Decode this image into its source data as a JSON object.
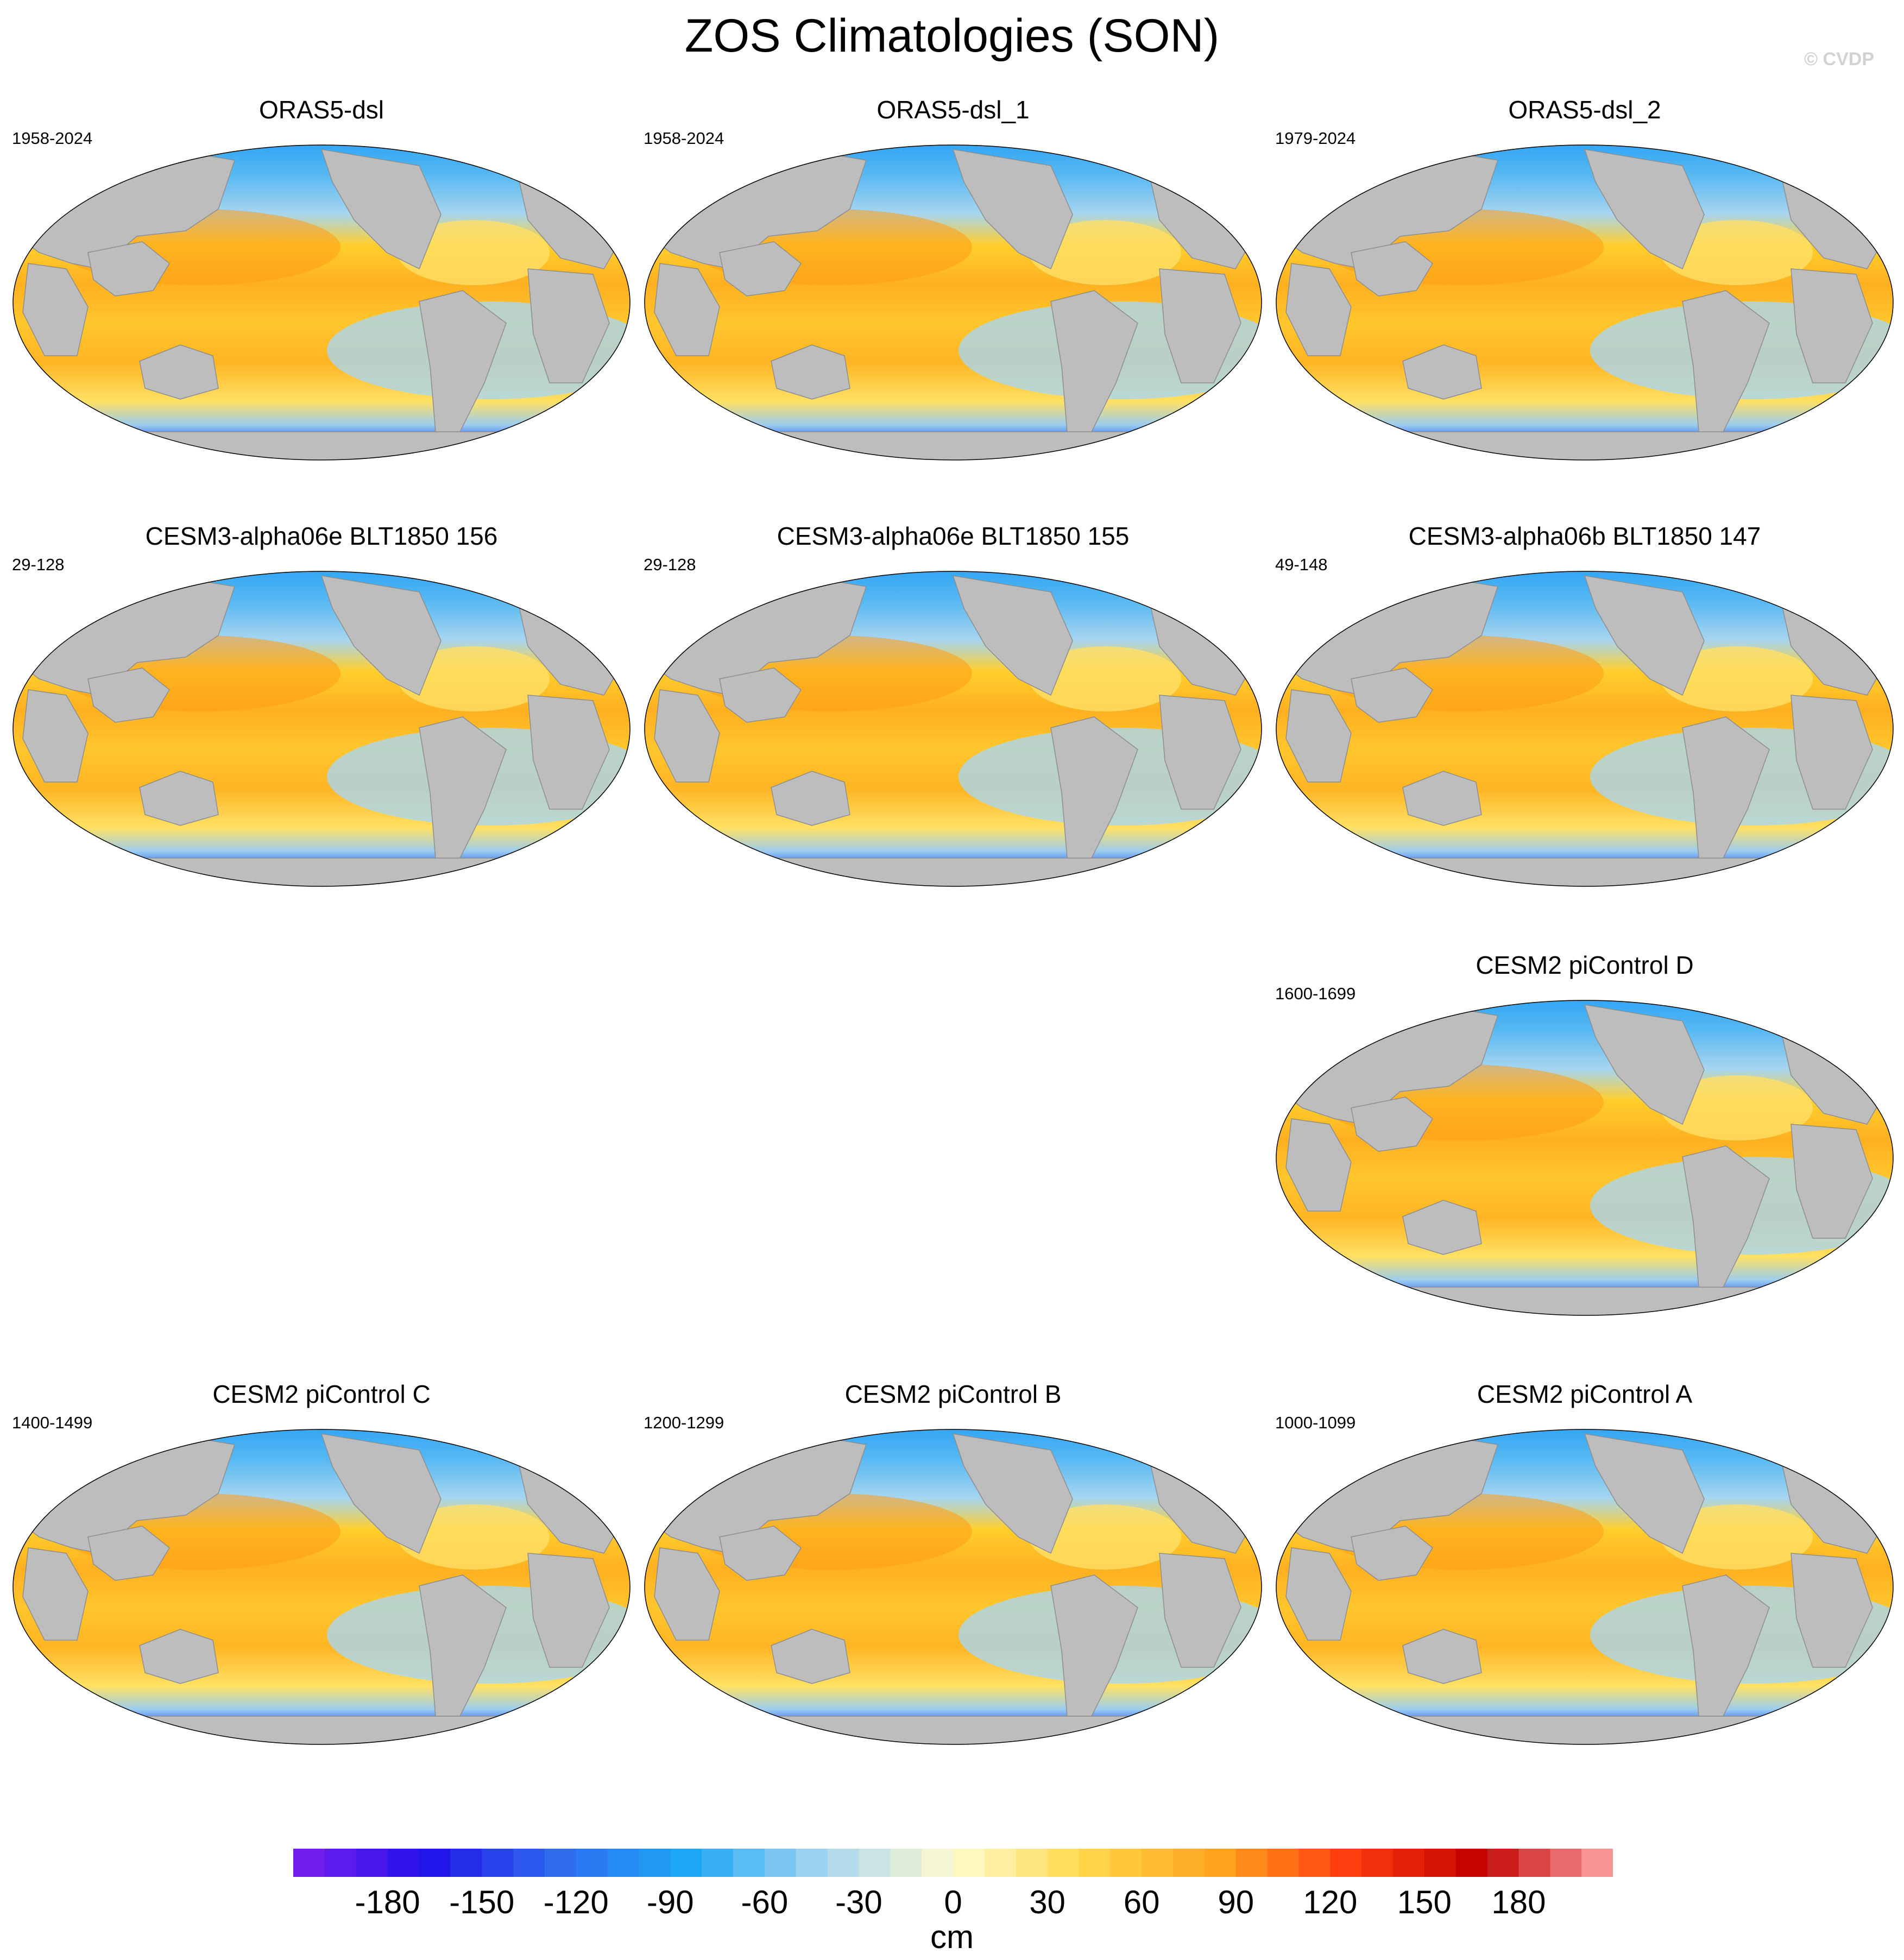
{
  "title": "ZOS Climatologies (SON)",
  "watermark": "© CVDP",
  "panels": [
    {
      "name": "ORAS5-dsl",
      "years": "1958-2024"
    },
    {
      "name": "ORAS5-dsl_1",
      "years": "1958-2024"
    },
    {
      "name": "ORAS5-dsl_2",
      "years": "1979-2024"
    },
    {
      "name": "CESM3-alpha06e BLT1850 156",
      "years": "29-128"
    },
    {
      "name": "CESM3-alpha06e BLT1850 155",
      "years": "29-128"
    },
    {
      "name": "CESM3-alpha06b BLT1850 147",
      "years": "49-148"
    },
    {
      "name": "CESM2 piControl D",
      "years": "1600-1699"
    },
    {
      "name": "CESM2 piControl C",
      "years": "1400-1499"
    },
    {
      "name": "CESM2 piControl B",
      "years": "1200-1299"
    },
    {
      "name": "CESM2 piControl A",
      "years": "1000-1099"
    }
  ],
  "colorbar": {
    "units": "cm",
    "min": -210,
    "max": 210,
    "labels": [
      "-180",
      "-150",
      "-120",
      "-90",
      "-60",
      "-30",
      "0",
      "30",
      "60",
      "90",
      "120",
      "150",
      "180"
    ],
    "colors": [
      "#7f1ff0",
      "#1f10e8",
      "#2f6bf0",
      "#1aa8f5",
      "#a6d4f0",
      "#fffbd0",
      "#ffd84a",
      "#ffa41e",
      "#ff3c10",
      "#c10000",
      "#ffa8a8"
    ]
  }
}
